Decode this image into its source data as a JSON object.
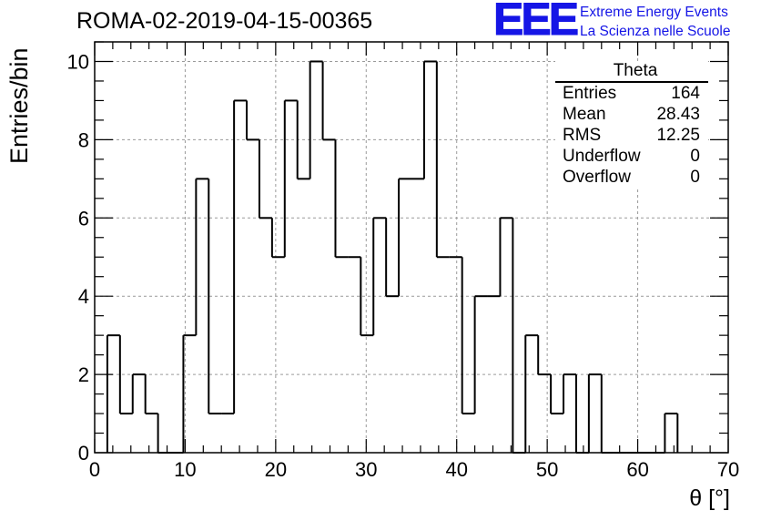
{
  "title": "ROMA-02-2019-04-15-00365",
  "logo": {
    "mark": "EEE",
    "line1": "Extreme Energy Events",
    "line2": "La Scienza nelle Scuole"
  },
  "stats_box": {
    "title": "Theta",
    "rows": [
      {
        "label": "Entries",
        "value": "164"
      },
      {
        "label": "Mean",
        "value": "28.43"
      },
      {
        "label": "RMS",
        "value": "12.25"
      },
      {
        "label": "Underflow",
        "value": "0"
      },
      {
        "label": "Overflow",
        "value": "0"
      }
    ]
  },
  "chart_data": {
    "type": "bar",
    "histogram": true,
    "title": "ROMA-02-2019-04-15-00365",
    "xlabel": "θ [°]",
    "ylabel": "Entries/bin",
    "xlim": [
      0,
      70
    ],
    "ylim": [
      0,
      10.5
    ],
    "grid": true,
    "x_ticks": [
      0,
      10,
      20,
      30,
      40,
      50,
      60,
      70
    ],
    "y_ticks": [
      0,
      2,
      4,
      6,
      8,
      10
    ],
    "bin_edges": [
      1.4,
      2.8,
      4.2,
      5.6,
      7.0,
      8.4,
      9.8,
      11.2,
      12.6,
      14.0,
      15.4,
      16.8,
      18.2,
      19.6,
      21.0,
      22.4,
      23.8,
      25.2,
      26.6,
      28.0,
      29.4,
      30.8,
      32.2,
      33.6,
      35.0,
      36.4,
      37.8,
      39.2,
      40.6,
      42.0,
      43.4,
      44.8,
      46.2,
      47.6,
      49.0,
      50.4,
      51.8,
      53.2,
      54.6,
      56.0,
      57.4,
      58.8,
      60.2,
      61.6,
      63.0,
      64.4
    ],
    "values": [
      3,
      1,
      2,
      1,
      0,
      0,
      3,
      7,
      1,
      1,
      9,
      8,
      6,
      5,
      9,
      7,
      10,
      8,
      5,
      5,
      3,
      6,
      4,
      7,
      7,
      10,
      5,
      5,
      1,
      4,
      4,
      6,
      0,
      3,
      2,
      1,
      2,
      0,
      2,
      0,
      0,
      0,
      0,
      0,
      1
    ]
  }
}
